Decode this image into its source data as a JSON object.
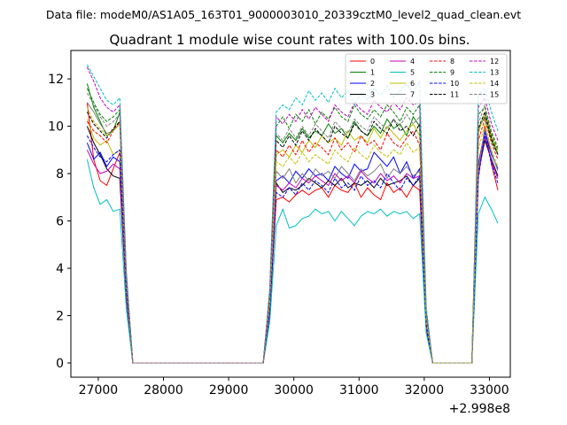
{
  "suptitle": "Data file: modeM0/AS1A05_163T01_9000003010_20339cztM0_level2_quad_clean.evt",
  "chart_data": {
    "type": "line",
    "title": "Quadrant 1 module wise count rates with 100.0s bins.",
    "xlabel": "",
    "ylabel": "",
    "x_offset_label": "+2.998e8",
    "xlim": [
      26580,
      33320
    ],
    "ylim": [
      -0.6,
      13.2
    ],
    "xticks": [
      27000,
      28000,
      29000,
      30000,
      31000,
      32000,
      33000
    ],
    "yticks": [
      0,
      2,
      4,
      6,
      8,
      10,
      12
    ],
    "grid": false,
    "legend": {
      "placement": "top-right",
      "columns": 4
    },
    "segments": [
      {
        "x_start": 26830,
        "n": 6
      },
      {
        "x_start": 29730,
        "n": 23
      },
      {
        "x_start": 32830,
        "n": 4
      }
    ],
    "gaps": [
      {
        "x": [
          27430,
          27530,
          27630,
          29530,
          29630
        ]
      },
      {
        "x": [
          32030,
          32130,
          32230,
          32330,
          32730
        ]
      }
    ],
    "series": [
      {
        "name": "0",
        "color": "#ff0000",
        "dash": "solid",
        "seg1": [
          11.0,
          8.6,
          7.7,
          7.5,
          8.2,
          8.9
        ],
        "mid": [
          6.9,
          7.0,
          6.8,
          7.1,
          7.3,
          7.1,
          7.3,
          7.4,
          7.0,
          7.5,
          7.3,
          7.2,
          7.6,
          7.0,
          7.4,
          7.1,
          6.9,
          7.6,
          7.2,
          7.4,
          7.0,
          7.5,
          7.3
        ],
        "seg3": [
          7.8,
          10.0,
          8.4,
          7.3
        ]
      },
      {
        "name": "1",
        "color": "#008000",
        "dash": "solid",
        "seg1": [
          11.8,
          10.8,
          10.2,
          9.6,
          9.8,
          10.6
        ],
        "mid": [
          9.6,
          9.3,
          9.7,
          9.4,
          9.9,
          9.5,
          9.8,
          9.6,
          10.1,
          9.7,
          9.9,
          9.5,
          10.2,
          9.8,
          9.6,
          10.0,
          9.7,
          10.3,
          9.9,
          10.1,
          9.6,
          10.4,
          10.0
        ],
        "seg3": [
          9.9,
          10.4,
          9.4,
          8.8
        ]
      },
      {
        "name": "2",
        "color": "#0000ff",
        "dash": "solid",
        "seg1": [
          9.3,
          8.6,
          8.9,
          8.3,
          8.7,
          8.5
        ],
        "mid": [
          7.7,
          7.9,
          7.6,
          8.1,
          7.8,
          8.2,
          7.9,
          8.0,
          7.7,
          8.3,
          8.0,
          7.8,
          8.4,
          8.1,
          8.2,
          8.9,
          8.6,
          8.3,
          8.7,
          8.0,
          8.5,
          7.8,
          8.2
        ],
        "seg3": [
          8.4,
          9.8,
          8.8,
          8.2
        ]
      },
      {
        "name": "3",
        "color": "#000000",
        "dash": "solid",
        "seg1": [
          10.0,
          9.3,
          8.8,
          8.2,
          7.9,
          7.8
        ],
        "mid": [
          7.6,
          7.2,
          7.4,
          7.3,
          7.5,
          7.8,
          7.6,
          7.4,
          7.7,
          7.5,
          7.8,
          7.4,
          7.6,
          7.5,
          7.7,
          7.4,
          7.8,
          7.5,
          7.6,
          7.7,
          7.9,
          7.5,
          7.8
        ],
        "seg3": [
          8.0,
          9.4,
          8.6,
          7.9
        ]
      },
      {
        "name": "4",
        "color": "#bf00bf",
        "dash": "solid",
        "seg1": [
          9.0,
          8.4,
          8.0,
          8.1,
          8.4,
          8.2
        ],
        "mid": [
          7.5,
          7.3,
          7.6,
          7.4,
          7.8,
          7.6,
          7.9,
          7.7,
          7.5,
          8.0,
          7.7,
          7.9,
          7.6,
          8.1,
          7.8,
          7.6,
          8.0,
          7.7,
          7.9,
          7.6,
          8.0,
          7.8,
          7.9
        ],
        "seg3": [
          7.9,
          9.6,
          8.5,
          7.8
        ]
      },
      {
        "name": "5",
        "color": "#00bfbf",
        "dash": "solid",
        "seg1": [
          8.6,
          7.4,
          6.7,
          6.9,
          6.4,
          6.5
        ],
        "mid": [
          5.8,
          6.5,
          5.7,
          5.8,
          6.1,
          6.2,
          6.5,
          6.3,
          6.4,
          6.0,
          6.4,
          6.1,
          5.8,
          6.2,
          6.4,
          6.3,
          6.5,
          6.2,
          6.4,
          6.3,
          6.4,
          6.1,
          6.3
        ],
        "seg3": [
          6.3,
          7.0,
          6.5,
          5.9
        ]
      },
      {
        "name": "6",
        "color": "#bfbf00",
        "dash": "solid",
        "seg1": [
          10.3,
          9.5,
          9.2,
          9.4,
          8.8,
          9.0
        ],
        "mid": [
          8.8,
          9.0,
          8.7,
          9.2,
          8.9,
          9.4,
          9.1,
          9.6,
          9.3,
          9.5,
          9.2,
          9.8,
          9.4,
          9.6,
          9.3,
          9.9,
          9.5,
          10.0,
          9.7,
          9.4,
          9.8,
          10.1,
          9.6
        ],
        "seg3": [
          9.7,
          10.6,
          9.6,
          8.9
        ]
      },
      {
        "name": "7",
        "color": "#808080",
        "dash": "solid",
        "seg1": [
          11.0,
          10.6,
          10.1,
          9.7,
          9.8,
          10.1
        ],
        "mid": [
          8.1,
          7.8,
          8.2,
          7.6,
          8.0,
          7.7,
          8.2,
          7.9,
          8.1,
          7.8,
          8.3,
          8.0,
          7.7,
          8.2,
          7.9,
          8.1,
          8.4,
          7.8,
          8.2,
          8.0,
          8.3,
          7.9,
          8.1
        ],
        "seg3": [
          8.2,
          9.9,
          8.9,
          8.1
        ]
      },
      {
        "name": "8",
        "color": "#ff0000",
        "dash": "dashed",
        "seg1": [
          10.2,
          9.8,
          9.6,
          9.3,
          9.8,
          10.2
        ],
        "mid": [
          9.0,
          8.7,
          9.2,
          8.8,
          9.4,
          8.9,
          9.3,
          9.1,
          8.8,
          9.5,
          9.0,
          9.3,
          8.9,
          9.6,
          9.2,
          9.4,
          9.0,
          9.7,
          9.3,
          9.1,
          9.5,
          9.8,
          9.2
        ],
        "seg3": [
          9.4,
          10.3,
          9.3,
          8.6
        ]
      },
      {
        "name": "9",
        "color": "#008000",
        "dash": "dashed",
        "seg1": [
          11.6,
          11.0,
          10.5,
          10.2,
          10.4,
          10.7
        ],
        "mid": [
          10.0,
          10.4,
          9.9,
          10.5,
          10.2,
          10.7,
          10.1,
          10.6,
          10.3,
          10.8,
          10.4,
          10.2,
          10.9,
          10.5,
          10.3,
          10.7,
          10.4,
          10.9,
          10.6,
          10.2,
          10.8,
          10.5,
          10.9
        ],
        "seg3": [
          10.5,
          10.8,
          9.7,
          9.0
        ]
      },
      {
        "name": "10",
        "color": "#0000ff",
        "dash": "dashed",
        "seg1": [
          9.6,
          9.1,
          8.7,
          8.5,
          8.8,
          9.0
        ],
        "mid": [
          7.2,
          7.0,
          7.4,
          7.1,
          7.6,
          7.3,
          7.7,
          7.5,
          7.2,
          7.8,
          7.4,
          7.6,
          7.3,
          7.9,
          7.5,
          7.7,
          7.4,
          8.0,
          7.6,
          7.3,
          7.8,
          7.5,
          7.9
        ],
        "seg3": [
          7.8,
          9.7,
          8.4,
          7.6
        ]
      },
      {
        "name": "11",
        "color": "#000000",
        "dash": "dashed",
        "seg1": [
          10.6,
          10.1,
          9.8,
          9.5,
          9.9,
          10.2
        ],
        "mid": [
          9.4,
          9.1,
          9.6,
          9.2,
          9.8,
          9.4,
          9.9,
          9.6,
          9.3,
          10.0,
          9.7,
          9.5,
          10.1,
          9.8,
          9.6,
          10.2,
          9.9,
          9.7,
          10.3,
          9.8,
          10.0,
          9.6,
          10.1
        ],
        "seg3": [
          9.9,
          10.6,
          9.5,
          8.8
        ]
      },
      {
        "name": "12",
        "color": "#bf00bf",
        "dash": "dashed",
        "seg1": [
          12.5,
          11.9,
          11.2,
          10.8,
          10.6,
          10.9
        ],
        "mid": [
          10.4,
          10.1,
          10.5,
          10.2,
          10.7,
          10.3,
          10.8,
          10.5,
          10.2,
          10.9,
          10.6,
          10.4,
          11.0,
          10.7,
          10.5,
          11.1,
          10.8,
          10.6,
          11.0,
          10.7,
          11.2,
          10.9,
          11.0
        ],
        "seg3": [
          10.8,
          11.2,
          10.1,
          9.4
        ]
      },
      {
        "name": "13",
        "color": "#00bfbf",
        "dash": "dashed",
        "seg1": [
          12.6,
          12.1,
          11.6,
          11.1,
          10.9,
          11.2
        ],
        "mid": [
          10.6,
          10.9,
          10.7,
          11.2,
          10.9,
          11.5,
          11.1,
          11.4,
          11.0,
          11.6,
          11.2,
          11.5,
          10.9,
          11.4,
          11.1,
          11.6,
          11.3,
          11.7,
          11.2,
          11.5,
          11.8,
          11.4,
          11.9
        ],
        "seg3": [
          11.3,
          11.6,
          10.6,
          9.8
        ]
      },
      {
        "name": "14",
        "color": "#bfbf00",
        "dash": "dashed",
        "seg1": [
          10.8,
          10.2,
          9.9,
          9.6,
          9.8,
          10.1
        ],
        "mid": [
          8.5,
          8.3,
          8.7,
          8.4,
          8.9,
          8.5,
          8.8,
          8.6,
          8.4,
          9.0,
          8.7,
          8.5,
          9.1,
          8.8,
          8.6,
          9.2,
          8.9,
          8.7,
          9.0,
          8.8,
          9.3,
          8.9,
          9.1
        ],
        "seg3": [
          9.0,
          10.1,
          9.0,
          8.3
        ]
      },
      {
        "name": "15",
        "color": "#808080",
        "dash": "dashed",
        "seg1": [
          11.4,
          10.9,
          10.4,
          10.0,
          10.2,
          10.5
        ],
        "mid": [
          9.7,
          9.4,
          9.9,
          9.5,
          10.0,
          9.6,
          10.1,
          9.8,
          9.5,
          10.2,
          9.9,
          9.7,
          10.3,
          10.0,
          9.8,
          10.4,
          10.1,
          9.9,
          10.3,
          10.0,
          10.5,
          10.1,
          10.4
        ],
        "seg3": [
          10.1,
          10.9,
          9.8,
          9.1
        ]
      }
    ]
  }
}
